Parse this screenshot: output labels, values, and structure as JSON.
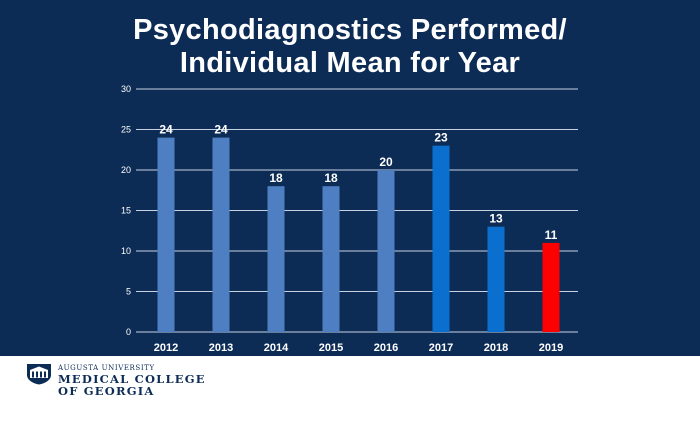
{
  "title": {
    "line1": "Psychodiagnostics Performed/",
    "line2": "Individual Mean for Year"
  },
  "chart_data": {
    "type": "bar",
    "categories": [
      "2012",
      "2013",
      "2014",
      "2015",
      "2016",
      "2017",
      "2018",
      "2019"
    ],
    "values": [
      24,
      24,
      18,
      18,
      20,
      23,
      13,
      11
    ],
    "bar_colors": [
      "#4f7fc3",
      "#4f7fc3",
      "#4f7fc3",
      "#4f7fc3",
      "#4f7fc3",
      "#0b6fd0",
      "#0b6fd0",
      "#ff0000"
    ],
    "yticks": [
      0,
      5,
      10,
      15,
      20,
      25,
      30
    ],
    "ylim": [
      0,
      30
    ],
    "grid": true,
    "legend": "none",
    "xlabel": "",
    "ylabel": ""
  },
  "colors": {
    "background": "#0c2c56",
    "text": "#ffffff",
    "gridline": "#c8d2e0",
    "logo": "#0c2c56"
  },
  "footer": {
    "university": "AUGUSTA UNIVERSITY",
    "college_line1": "MEDICAL COLLEGE",
    "college_line2": "OF GEORGIA"
  },
  "icons": {
    "logo": "augusta-university-shield-icon"
  }
}
